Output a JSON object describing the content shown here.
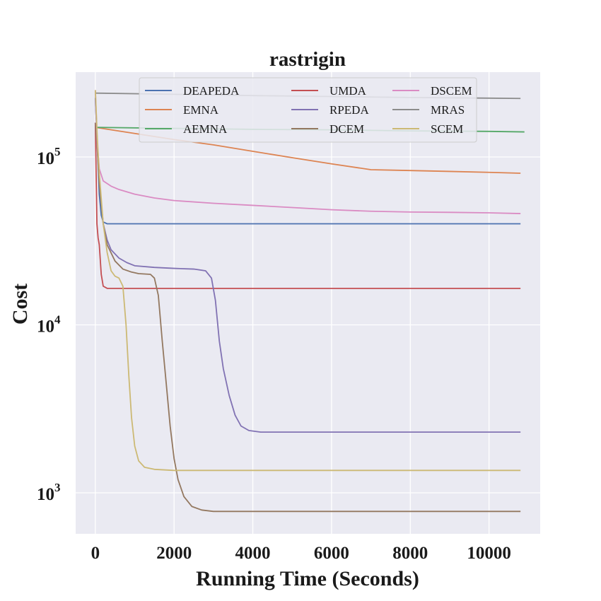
{
  "chart_data": {
    "type": "line",
    "title": "rastrigin",
    "xlabel": "Running Time (Seconds)",
    "ylabel": "Cost",
    "xscale": "linear",
    "yscale": "log",
    "xlim": [
      -500,
      11300
    ],
    "ylim": [
      570,
      320000
    ],
    "xticks": [
      0,
      2000,
      4000,
      6000,
      8000,
      10000
    ],
    "xtick_labels": [
      "0",
      "2000",
      "4000",
      "6000",
      "8000",
      "10000"
    ],
    "yticks": [
      1000,
      10000,
      100000
    ],
    "ytick_labels": [
      {
        "base": "10",
        "exp": "3"
      },
      {
        "base": "10",
        "exp": "4"
      },
      {
        "base": "10",
        "exp": "5"
      }
    ],
    "grid": true,
    "legend_position": "top-center",
    "legend_columns": 3,
    "series": [
      {
        "name": "DEAPEDA",
        "color": "#4c72b0",
        "points": [
          [
            0,
            225000
          ],
          [
            50,
            120000
          ],
          [
            100,
            60000
          ],
          [
            150,
            45000
          ],
          [
            200,
            41000
          ],
          [
            300,
            40000
          ],
          [
            10800,
            40000
          ]
        ]
      },
      {
        "name": "EMNA",
        "color": "#dd8452",
        "points": [
          [
            0,
            150000
          ],
          [
            1000,
            138000
          ],
          [
            2000,
            127000
          ],
          [
            3000,
            118000
          ],
          [
            4000,
            108000
          ],
          [
            5000,
            99000
          ],
          [
            6000,
            91000
          ],
          [
            7000,
            84000
          ],
          [
            8000,
            83000
          ],
          [
            9000,
            82000
          ],
          [
            10000,
            81000
          ],
          [
            10800,
            80000
          ]
        ]
      },
      {
        "name": "AEMNA",
        "color": "#55a868",
        "points": [
          [
            0,
            150000
          ],
          [
            2000,
            148000
          ],
          [
            4000,
            146000
          ],
          [
            6000,
            145000
          ],
          [
            8000,
            143000
          ],
          [
            10000,
            142000
          ],
          [
            10900,
            141000
          ]
        ]
      },
      {
        "name": "UMDA",
        "color": "#c44e52",
        "points": [
          [
            0,
            160000
          ],
          [
            20,
            80000
          ],
          [
            40,
            40000
          ],
          [
            70,
            33000
          ],
          [
            100,
            30000
          ],
          [
            150,
            20000
          ],
          [
            200,
            17000
          ],
          [
            300,
            16500
          ],
          [
            10800,
            16500
          ]
        ]
      },
      {
        "name": "RPEDA",
        "color": "#8172b3",
        "points": [
          [
            0,
            220000
          ],
          [
            50,
            120000
          ],
          [
            100,
            70000
          ],
          [
            200,
            40000
          ],
          [
            300,
            32000
          ],
          [
            400,
            28000
          ],
          [
            600,
            25000
          ],
          [
            800,
            23500
          ],
          [
            1000,
            22500
          ],
          [
            1500,
            22000
          ],
          [
            2000,
            21700
          ],
          [
            2500,
            21500
          ],
          [
            2800,
            21000
          ],
          [
            2950,
            19000
          ],
          [
            3050,
            14000
          ],
          [
            3150,
            8000
          ],
          [
            3250,
            5500
          ],
          [
            3400,
            3800
          ],
          [
            3550,
            2900
          ],
          [
            3700,
            2500
          ],
          [
            3900,
            2350
          ],
          [
            4200,
            2300
          ],
          [
            10800,
            2300
          ]
        ]
      },
      {
        "name": "DCEM",
        "color": "#937860",
        "points": [
          [
            0,
            160000
          ],
          [
            50,
            110000
          ],
          [
            100,
            70000
          ],
          [
            200,
            40000
          ],
          [
            300,
            30000
          ],
          [
            500,
            24000
          ],
          [
            700,
            21500
          ],
          [
            900,
            20700
          ],
          [
            1100,
            20200
          ],
          [
            1400,
            20000
          ],
          [
            1500,
            19000
          ],
          [
            1600,
            15000
          ],
          [
            1700,
            8000
          ],
          [
            1800,
            4500
          ],
          [
            1900,
            2500
          ],
          [
            2000,
            1600
          ],
          [
            2100,
            1200
          ],
          [
            2250,
            950
          ],
          [
            2450,
            830
          ],
          [
            2700,
            790
          ],
          [
            3000,
            775
          ],
          [
            10800,
            775
          ]
        ]
      },
      {
        "name": "DSCEM",
        "color": "#da8bc3",
        "points": [
          [
            0,
            250000
          ],
          [
            50,
            120000
          ],
          [
            100,
            85000
          ],
          [
            200,
            72000
          ],
          [
            400,
            67000
          ],
          [
            600,
            64000
          ],
          [
            1000,
            60000
          ],
          [
            1500,
            57000
          ],
          [
            2000,
            55000
          ],
          [
            3000,
            53000
          ],
          [
            4000,
            51500
          ],
          [
            5000,
            50000
          ],
          [
            6000,
            48500
          ],
          [
            7000,
            47500
          ],
          [
            8000,
            47000
          ],
          [
            9000,
            46800
          ],
          [
            10000,
            46500
          ],
          [
            10800,
            46000
          ]
        ]
      },
      {
        "name": "MRAS",
        "color": "#8c8c8c",
        "points": [
          [
            0,
            240000
          ],
          [
            2000,
            236000
          ],
          [
            4000,
            232000
          ],
          [
            6000,
            229000
          ],
          [
            8000,
            226000
          ],
          [
            10000,
            224000
          ],
          [
            10800,
            223000
          ]
        ]
      },
      {
        "name": "SCEM",
        "color": "#ccb974",
        "points": [
          [
            0,
            250000
          ],
          [
            50,
            130000
          ],
          [
            100,
            80000
          ],
          [
            200,
            40000
          ],
          [
            300,
            27000
          ],
          [
            400,
            21000
          ],
          [
            500,
            19500
          ],
          [
            600,
            19000
          ],
          [
            700,
            17000
          ],
          [
            780,
            10000
          ],
          [
            850,
            5000
          ],
          [
            920,
            2800
          ],
          [
            1000,
            1900
          ],
          [
            1100,
            1550
          ],
          [
            1250,
            1420
          ],
          [
            1500,
            1380
          ],
          [
            2000,
            1360
          ],
          [
            10800,
            1360
          ]
        ]
      }
    ]
  }
}
